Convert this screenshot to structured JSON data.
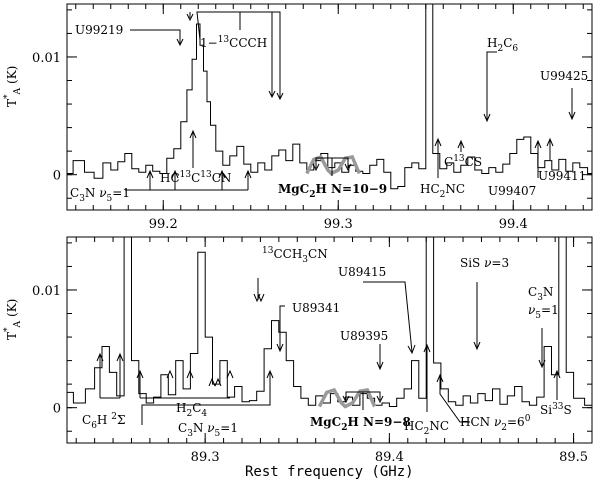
{
  "chart_data": [
    {
      "type": "line",
      "panel": "top",
      "xlim": [
        99.145,
        99.445
      ],
      "ylim": [
        -0.003,
        0.0145
      ],
      "ylabel_main": "T",
      "ylabel_sup": "*",
      "ylabel_sub": "A",
      "ylabel_unit": "(K)",
      "x_ticks": [
        "99.2",
        "99.3",
        "99.4"
      ],
      "x_tick_values": [
        99.2,
        99.3,
        99.4
      ],
      "y_ticks": [
        "0",
        "0.01"
      ],
      "y_tick_values": [
        0,
        0.01
      ],
      "series": [
        {
          "x": [
            99.145,
            99.152,
            99.158,
            99.163,
            99.168,
            99.172,
            99.176,
            99.18,
            99.184,
            99.188,
            99.192,
            99.196,
            99.2,
            99.204,
            99.208,
            99.212,
            99.215,
            99.218,
            99.22,
            99.222,
            99.224,
            99.226,
            99.228,
            99.232,
            99.236,
            99.24,
            99.244,
            99.248,
            99.252,
            99.256,
            99.26,
            99.264,
            99.268,
            99.272,
            99.276,
            99.28,
            99.284,
            99.288,
            99.292,
            99.296,
            99.3,
            99.304,
            99.308,
            99.312,
            99.316,
            99.32,
            99.324,
            99.328,
            99.332,
            99.336,
            99.34,
            99.344,
            99.348,
            99.352,
            99.356,
            99.36,
            99.364,
            99.368,
            99.372,
            99.376,
            99.38,
            99.384,
            99.388,
            99.392,
            99.396,
            99.4,
            99.404,
            99.408,
            99.412,
            99.416,
            99.42,
            99.424,
            99.428,
            99.432,
            99.436,
            99.44,
            99.445
          ],
          "values": [
            0.0001,
            0.0012,
            0.0002,
            -0.0003,
            0.001,
            0.0004,
            0.0011,
            0.0018,
            0.0005,
            0.0002,
            0.0008,
            0.0003,
            0.0001,
            0.0014,
            0.0022,
            0.0045,
            0.0072,
            0.0098,
            0.0128,
            0.011,
            0.0088,
            0.0062,
            0.0042,
            0.002,
            0.0008,
            0.0016,
            0.0024,
            0.0009,
            0.0002,
            0.001,
            0.0004,
            0.0016,
            0.0021,
            0.0012,
            0.0026,
            0.001,
            0.0004,
            0.0012,
            0.0018,
            0.0006,
            0.001,
            0.0002,
            0.0008,
            0.0003,
            0.0001,
            0.0008,
            0.0013,
            0.0002,
            -0.0012,
            -0.001,
            0.0006,
            0.001,
            0.0005,
            0.016,
            0.0018,
            0.0005,
            0.001,
            0.0002,
            0.0008,
            0.0015,
            0.0004,
            0.0001,
            0.0006,
            0.0002,
            0.0009,
            0.0018,
            0.003,
            0.0032,
            0.0018,
            0.0006,
            0.0012,
            0.0004,
            0.0013,
            0.0003,
            0.001,
            0.0006,
            0.0001
          ]
        }
      ],
      "model": {
        "x": [
          99.282,
          99.286,
          99.29,
          99.294,
          99.296,
          99.3,
          99.304,
          99.308,
          99.312
        ],
        "values": [
          0.0001,
          0.0013,
          0.0015,
          0.0004,
          0.0001,
          0.0004,
          0.0014,
          0.0015,
          0.0001
        ]
      },
      "labels": [
        {
          "text": "U99219",
          "x": 99.222
        },
        {
          "text": "1−",
          "sup": "13",
          "text2": "CCCH",
          "x": 99.245
        },
        {
          "text": "H",
          "sub": "2",
          "text2": "C",
          "sub2": "6",
          "x": 99.372
        },
        {
          "text": "U99425",
          "x": 99.428
        },
        {
          "text": "C",
          "sup": "13",
          "text2": "CS",
          "x": 99.362
        },
        {
          "text": "HC",
          "sub": "2",
          "text2": "NC",
          "x": 99.352
        },
        {
          "text": "HC",
          "sup": "13",
          "text2": "C",
          "sup2": "13",
          "text3": "CN",
          "x": 99.224
        },
        {
          "text": "C",
          "sub": "3",
          "text2": "N ",
          "greek": "ν",
          "sub3": "5",
          "text3": "=1",
          "x": 99.16
        },
        {
          "text": "MgC",
          "sub": "2",
          "text2": "H N=10−9",
          "x": 99.297,
          "bold": true
        },
        {
          "text": "U99407",
          "x": 99.396
        },
        {
          "text": "U99411",
          "x": 99.411
        }
      ]
    },
    {
      "type": "line",
      "panel": "bottom",
      "xlim": [
        89.225,
        89.51
      ],
      "ylim": [
        -0.003,
        0.0145
      ],
      "xlabel": "Rest frequency (GHz)",
      "ylabel_main": "T",
      "ylabel_sup": "*",
      "ylabel_sub": "A",
      "ylabel_unit": "(K)",
      "x_ticks": [
        "89.3",
        "89.4",
        "89.5"
      ],
      "x_tick_values": [
        89.3,
        89.4,
        89.5
      ],
      "y_ticks": [
        "0",
        "0.01"
      ],
      "y_tick_values": [
        0,
        0.01
      ],
      "series": [
        {
          "x": [
            89.225,
            89.232,
            89.238,
            89.242,
            89.246,
            89.25,
            89.254,
            89.258,
            89.262,
            89.266,
            89.27,
            89.274,
            89.278,
            89.282,
            89.286,
            89.29,
            89.294,
            89.298,
            89.302,
            89.306,
            89.31,
            89.314,
            89.318,
            89.322,
            89.326,
            89.33,
            89.334,
            89.338,
            89.342,
            89.346,
            89.35,
            89.354,
            89.358,
            89.362,
            89.366,
            89.37,
            89.374,
            89.378,
            89.382,
            89.386,
            89.39,
            89.394,
            89.398,
            89.402,
            89.406,
            89.41,
            89.414,
            89.418,
            89.422,
            89.426,
            89.43,
            89.434,
            89.438,
            89.442,
            89.446,
            89.45,
            89.454,
            89.458,
            89.462,
            89.466,
            89.47,
            89.474,
            89.478,
            89.482,
            89.486,
            89.49,
            89.494,
            89.498,
            89.502,
            89.51
          ],
          "values": [
            0.0013,
            0.0004,
            0.0016,
            0.0034,
            0.0052,
            0.003,
            0.001,
            0.016,
            0.004,
            0.0012,
            0.0004,
            0.0009,
            0.0028,
            0.0011,
            0.004,
            0.0016,
            0.0046,
            0.0132,
            0.006,
            0.002,
            0.004,
            0.0009,
            0.0018,
            0.0005,
            0.0006,
            0.0014,
            0.005,
            0.0074,
            0.0064,
            0.004,
            0.0018,
            0.0008,
            0.0002,
            0.001,
            0.0004,
            0.0012,
            0.0005,
            0.0009,
            0.0002,
            0.0012,
            0.0008,
            0.0002,
            0.0004,
            0.0001,
            0.0008,
            0.0016,
            0.004,
            0.0008,
            0.015,
            0.0038,
            0.0016,
            0.0005,
            0.0002,
            0.001,
            0.0004,
            0.0012,
            0.0006,
            0.0016,
            0.0003,
            0.001,
            0.0018,
            0.0005,
            0.0002,
            0.0009,
            0.0052,
            0.0028,
            0.016,
            0.003,
            0.0008,
            0.0002
          ]
        }
      ],
      "model": {
        "x": [
          89.362,
          89.366,
          89.37,
          89.374,
          89.376,
          89.38,
          89.384,
          89.388,
          89.392
        ],
        "values": [
          0.0001,
          0.0013,
          0.0015,
          0.0004,
          0.0001,
          0.0004,
          0.0014,
          0.0015,
          0.0001
        ]
      },
      "labels": [
        {
          "text": "C",
          "sup": "13",
          "text2": "CH",
          "sub": "3",
          "text3": "CN",
          "x": 89.335
        },
        {
          "text": "U89341",
          "x": 89.341
        },
        {
          "text": "U89415",
          "x": 89.415
        },
        {
          "text": "SiS ",
          "greek": "ν",
          "text2": "=3",
          "x": 89.458
        },
        {
          "text": "C",
          "sub": "3",
          "text2": "N",
          "x": 89.485
        },
        {
          "text": "ν",
          "sub": "5",
          "text2": "=1",
          "x": 89.485
        },
        {
          "text": "U89395",
          "x": 89.395
        },
        {
          "text": "C",
          "sub": "6",
          "text2": "H ",
          "sup": "2",
          "text3": "Σ",
          "x": 89.248
        },
        {
          "text": "H",
          "sub": "2",
          "text2": "C",
          "sub2": "4",
          "x": 89.29
        },
        {
          "text": "C",
          "sub": "3",
          "text2": "N ",
          "greek": "ν",
          "sub3": "5",
          "text3": "=1",
          "x": 89.302
        },
        {
          "text": "MgC",
          "sub": "2",
          "text2": "H N=9−8",
          "x": 89.377,
          "bold": true
        },
        {
          "text": "HC",
          "sub": "2",
          "text2": "NC",
          "x": 89.423
        },
        {
          "text": "HCN ",
          "greek": "ν",
          "sub": "2",
          "text2": "=6",
          "sup": "0",
          "x": 89.46
        },
        {
          "text": "Si",
          "sup": "33",
          "text2": "S",
          "x": 89.49
        }
      ]
    }
  ]
}
